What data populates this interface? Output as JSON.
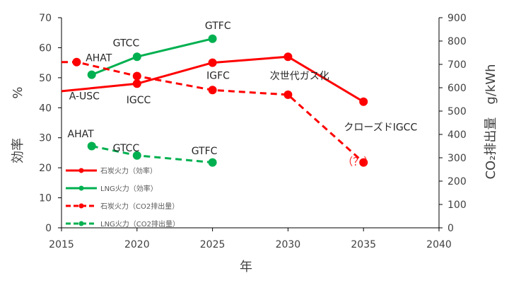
{
  "chart_data": {
    "type": "line",
    "xlabel": "年",
    "ylabel_left": [
      "効率",
      "%"
    ],
    "ylabel_right": "CO₂排出量　g/kWh",
    "xlim": [
      2015,
      2040
    ],
    "ylim_left": [
      0,
      70
    ],
    "ylim_right": [
      0,
      900
    ],
    "x_ticks": [
      "2015",
      "2020",
      "2025",
      "2030",
      "2035",
      "2040"
    ],
    "y_left_ticks": [
      "0",
      "10",
      "20",
      "30",
      "40",
      "50",
      "60",
      "70"
    ],
    "y_right_ticks": [
      "0",
      "100",
      "200",
      "300",
      "400",
      "500",
      "600",
      "700",
      "800",
      "900"
    ],
    "grid": false,
    "legend_placement": "bottom-left",
    "series": [
      {
        "name": "石炭火力（効率）",
        "axis": "left",
        "color": "#ff0000",
        "dash": false,
        "x": [
          2015,
          2020,
          2025,
          2030,
          2035
        ],
        "y": [
          45.5,
          48,
          55,
          57,
          42
        ],
        "marker_indices": [
          1,
          2,
          3,
          4
        ]
      },
      {
        "name": "LNG火力（効率）",
        "axis": "left",
        "color": "#00b050",
        "dash": false,
        "x": [
          2017,
          2020,
          2025
        ],
        "y": [
          51,
          57,
          63
        ],
        "marker_indices": [
          0,
          1,
          2
        ]
      },
      {
        "name": "石炭火力（CO2排出量）",
        "axis": "right",
        "color": "#ff0000",
        "dash": true,
        "x": [
          2015,
          2016,
          2020,
          2025,
          2030,
          2035
        ],
        "y": [
          710,
          710,
          650,
          590,
          570,
          280
        ],
        "marker_indices": [
          1,
          2,
          3,
          4,
          5
        ]
      },
      {
        "name": "LNG火力（CO2排出量）",
        "axis": "right",
        "color": "#00b050",
        "dash": true,
        "x": [
          2017,
          2020,
          2025
        ],
        "y": [
          350,
          310,
          280
        ],
        "marker_indices": [
          0,
          1,
          2
        ]
      }
    ],
    "annotations": [
      {
        "text": "A-USC",
        "x": 2015.5,
        "y": 42.8,
        "axis": "left"
      },
      {
        "text": "IGCC",
        "x": 2019.3,
        "y": 41.5,
        "axis": "left"
      },
      {
        "text": "GTCC",
        "x": 2018.4,
        "y": 60.5,
        "axis": "left"
      },
      {
        "text": "GTFC",
        "x": 2024.5,
        "y": 66.2,
        "axis": "left"
      },
      {
        "text": "AHAT",
        "x": 2016.6,
        "y": 55.5,
        "axis": "left"
      },
      {
        "text": "IGFC",
        "x": 2024.6,
        "y": 49.6,
        "axis": "left"
      },
      {
        "text": "次世代ガス化",
        "x": 2028.8,
        "y": 49.5,
        "axis": "left"
      },
      {
        "text": "クローズドIGCC",
        "x": 2033.7,
        "y": 32.4,
        "axis": "left"
      },
      {
        "text": "AHAT",
        "x": 2015.4,
        "y": 30.2,
        "axis": "left"
      },
      {
        "text": "GTCC",
        "x": 2018.4,
        "y": 25.5,
        "axis": "left"
      },
      {
        "text": "GTFC",
        "x": 2023.6,
        "y": 24.5,
        "axis": "left"
      },
      {
        "text": "（？）",
        "x": 2033.6,
        "y": 20.8,
        "axis": "left",
        "color": "red"
      }
    ]
  }
}
